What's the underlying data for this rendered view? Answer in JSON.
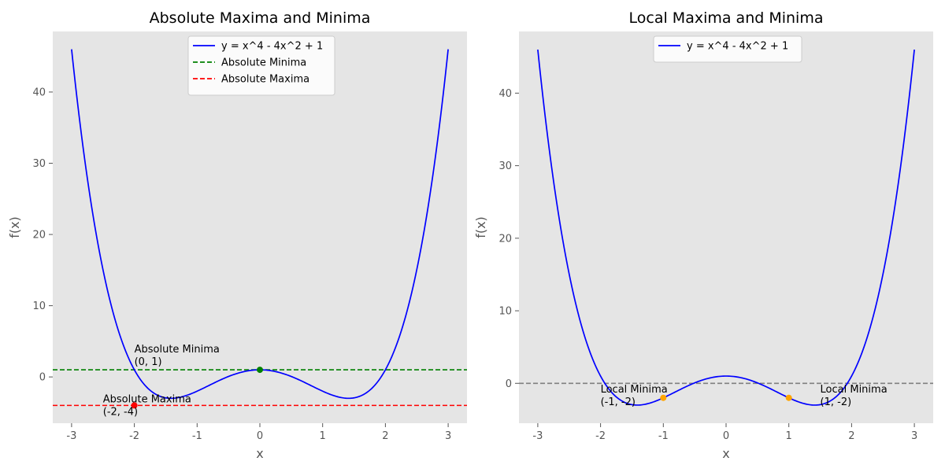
{
  "chart_data": [
    {
      "type": "line",
      "title": "Absolute Maxima and Minima",
      "xlabel": "x",
      "ylabel": "f(x)",
      "function": "x^4 - 4x^2 + 1",
      "x_range": [
        -3,
        3
      ],
      "xlim": [
        -3.3,
        3.3
      ],
      "ylim": [
        -6.5,
        48.5
      ],
      "xticks": [
        -3,
        -2,
        -1,
        0,
        1,
        2,
        3
      ],
      "yticks": [
        0,
        10,
        20,
        30,
        40
      ],
      "grid": false,
      "background": "#e5e5e5",
      "legend_position": "upper-center",
      "series": [
        {
          "name": "y = x^4 - 4x^2 + 1",
          "color": "#0000ff",
          "style": "solid"
        }
      ],
      "hlines": [
        {
          "name": "Absolute Minima",
          "y": 1,
          "color": "#008000",
          "style": "dashed"
        },
        {
          "name": "Absolute Maxima",
          "y": -4,
          "color": "#ff0000",
          "style": "dashed"
        }
      ],
      "points": [
        {
          "x": 0,
          "y": 1,
          "color": "#008000",
          "label_line1": "Absolute Minima",
          "label_line2": "(0, 1)",
          "label_x": -2,
          "label_y": 3.0
        },
        {
          "x": -2,
          "y": -4,
          "color": "#ff0000",
          "label_line1": "Absolute Maxima",
          "label_line2": "(-2, -4)",
          "label_x": -2.5,
          "label_y": -4.0
        }
      ]
    },
    {
      "type": "line",
      "title": "Local Maxima and Minima",
      "xlabel": "x",
      "ylabel": "f(x)",
      "function": "x^4 - 4x^2 + 1",
      "x_range": [
        -3,
        3
      ],
      "xlim": [
        -3.3,
        3.3
      ],
      "ylim": [
        -5.5,
        48.5
      ],
      "xticks": [
        -3,
        -2,
        -1,
        0,
        1,
        2,
        3
      ],
      "yticks": [
        0,
        10,
        20,
        30,
        40
      ],
      "grid": false,
      "background": "#e5e5e5",
      "legend_position": "upper-center",
      "series": [
        {
          "name": "y = x^4 - 4x^2 + 1",
          "color": "#0000ff",
          "style": "solid"
        }
      ],
      "hlines": [
        {
          "y": 0,
          "color": "#808080",
          "style": "dashed"
        }
      ],
      "points": [
        {
          "x": -1,
          "y": -2,
          "color": "#ffa500",
          "label_line1": "Local Minima",
          "label_line2": "(-1, -2)",
          "label_x": -2,
          "label_y": -1.7
        },
        {
          "x": 1,
          "y": -2,
          "color": "#ffa500",
          "label_line1": "Local Minima",
          "label_line2": "(1, -2)",
          "label_x": 1.5,
          "label_y": -1.7
        }
      ]
    }
  ]
}
